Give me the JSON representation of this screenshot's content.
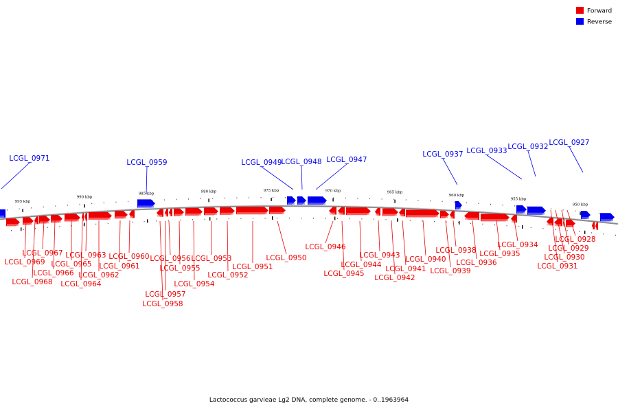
{
  "caption": "Lactococcus garvieae Lg2 DNA, complete genome. - 0..1963964",
  "legend": [
    {
      "label": "Forward",
      "color": "#ee0000"
    },
    {
      "label": "Reverse",
      "color": "#0000ee"
    }
  ],
  "colors": {
    "forward": "#ee0000",
    "reverse": "#0000ee",
    "backbone": "#8a8a8a"
  },
  "kbp_marks": [
    "995 kbp",
    "990 kbp",
    "985 kbp",
    "980 kbp",
    "975 kbp",
    "970 kbp",
    "965 kbp",
    "960 kbp",
    "955 kbp",
    "950 kbp"
  ],
  "reverse_genes": [
    "LCGL_0971",
    "LCGL_0959",
    "LCGL_0949",
    "LCGL_0948",
    "LCGL_0947",
    "LCGL_0937",
    "LCGL_0933",
    "LCGL_0932",
    "LCGL_0927"
  ],
  "forward_genes": [
    "LCGL_0969",
    "LCGL_0968",
    "LCGL_0967",
    "LCGL_0966",
    "LCGL_0965",
    "LCGL_0964",
    "LCGL_0963",
    "LCGL_0962",
    "LCGL_0961",
    "LCGL_0960",
    "LCGL_0958",
    "LCGL_0957",
    "LCGL_0956",
    "LCGL_0955",
    "LCGL_0954",
    "LCGL_0953",
    "LCGL_0952",
    "LCGL_0951",
    "LCGL_0950",
    "LCGL_0946",
    "LCGL_0945",
    "LCGL_0944",
    "LCGL_0943",
    "LCGL_0942",
    "LCGL_0941",
    "LCGL_0940",
    "LCGL_0939",
    "LCGL_0938",
    "LCGL_0936",
    "LCGL_0935",
    "LCGL_0934",
    "LCGL_0931",
    "LCGL_0930",
    "LCGL_0929",
    "LCGL_0928"
  ]
}
